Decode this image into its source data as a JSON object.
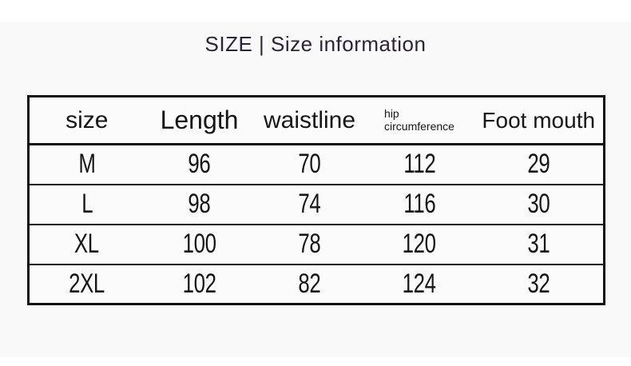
{
  "page": {
    "colors": {
      "title": "#2f2337",
      "table_border": "#101010",
      "background_band": "#f9f9f9"
    }
  },
  "header": {
    "title": "SIZE | Size information"
  },
  "table": {
    "headers": [
      "size",
      "Length",
      "waistline",
      "hip\ncircumference",
      "Foot mouth"
    ],
    "rows": [
      [
        "M",
        "96",
        "70",
        "112",
        "29"
      ],
      [
        "L",
        "98",
        "74",
        "116",
        "30"
      ],
      [
        "XL",
        "100",
        "78",
        "120",
        "31"
      ],
      [
        "2XL",
        "102",
        "82",
        "124",
        "32"
      ]
    ]
  }
}
